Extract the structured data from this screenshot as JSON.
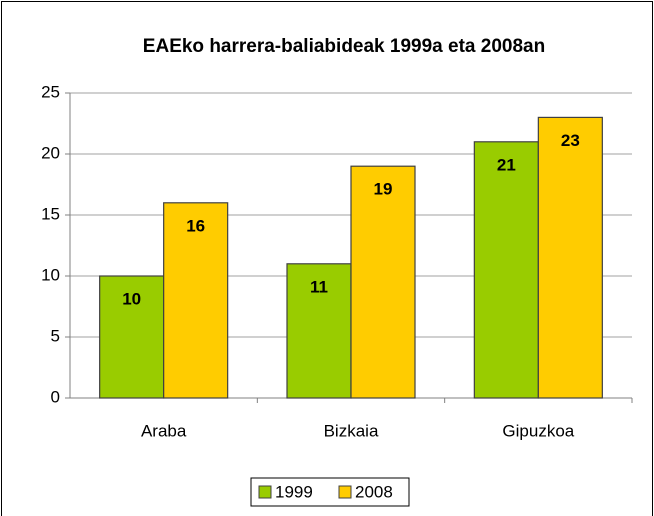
{
  "chart_data": {
    "type": "bar",
    "title": "EAEko harrera-baliabideak 1999a eta 2008an",
    "categories": [
      "Araba",
      "Bizkaia",
      "Gipuzkoa"
    ],
    "series": [
      {
        "name": "1999",
        "color": "#99cc00",
        "values": [
          10,
          11,
          21
        ]
      },
      {
        "name": "2008",
        "color": "#ffcc00",
        "values": [
          16,
          19,
          23
        ]
      }
    ],
    "ylim": [
      0,
      25
    ],
    "yticks": [
      0,
      5,
      10,
      15,
      20,
      25
    ],
    "grid": true,
    "legend": "bottom"
  }
}
